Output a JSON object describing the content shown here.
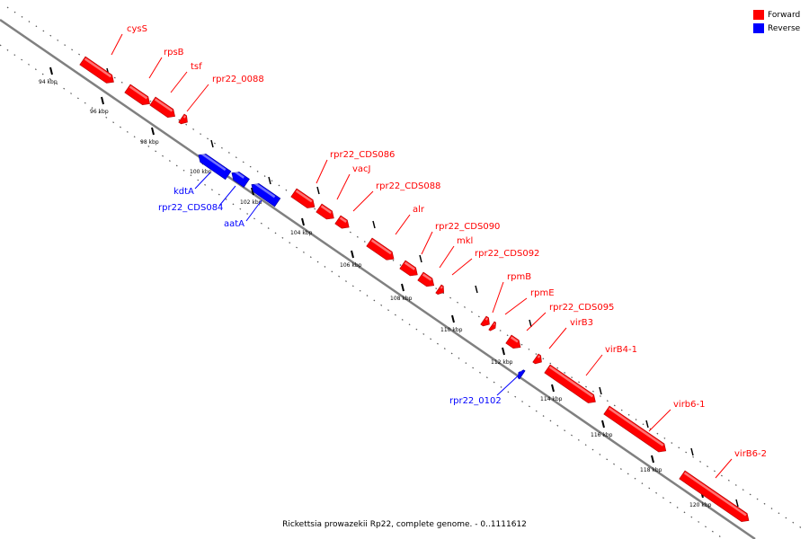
{
  "caption": "Rickettsia prowazekii Rp22, complete genome. - 0..1111612",
  "legend": [
    {
      "label": "Forward",
      "color": "#ff0000"
    },
    {
      "label": "Reverse",
      "color": "#0000ff"
    }
  ],
  "ticks": [
    "94 kbp",
    "96 kbp",
    "98 kbp",
    "100 kbp",
    "102 kbp",
    "104 kbp",
    "106 kbp",
    "108 kbp",
    "110 kbp",
    "112 kbp",
    "114 kbp",
    "116 kbp",
    "118 kbp",
    "120 kbp"
  ],
  "genes": [
    {
      "name": "cysS",
      "strand": "forward"
    },
    {
      "name": "rpsB",
      "strand": "forward"
    },
    {
      "name": "tsf",
      "strand": "forward"
    },
    {
      "name": "rpr22_0088",
      "strand": "forward"
    },
    {
      "name": "kdtA",
      "strand": "reverse"
    },
    {
      "name": "rpr22_CDS084",
      "strand": "reverse"
    },
    {
      "name": "aatA",
      "strand": "reverse"
    },
    {
      "name": "rpr22_CDS086",
      "strand": "forward"
    },
    {
      "name": "vacJ",
      "strand": "forward"
    },
    {
      "name": "rpr22_CDS088",
      "strand": "forward"
    },
    {
      "name": "alr",
      "strand": "forward"
    },
    {
      "name": "rpr22_CDS090",
      "strand": "forward"
    },
    {
      "name": "mkl",
      "strand": "forward"
    },
    {
      "name": "rpr22_CDS092",
      "strand": "forward"
    },
    {
      "name": "rpmB",
      "strand": "forward"
    },
    {
      "name": "rpmE",
      "strand": "forward"
    },
    {
      "name": "rpr22_CDS095",
      "strand": "forward"
    },
    {
      "name": "virB3",
      "strand": "forward"
    },
    {
      "name": "virB4-1",
      "strand": "forward"
    },
    {
      "name": "rpr22_0102",
      "strand": "reverse"
    },
    {
      "name": "virb6-1",
      "strand": "forward"
    },
    {
      "name": "virB6-2",
      "strand": "forward"
    }
  ]
}
